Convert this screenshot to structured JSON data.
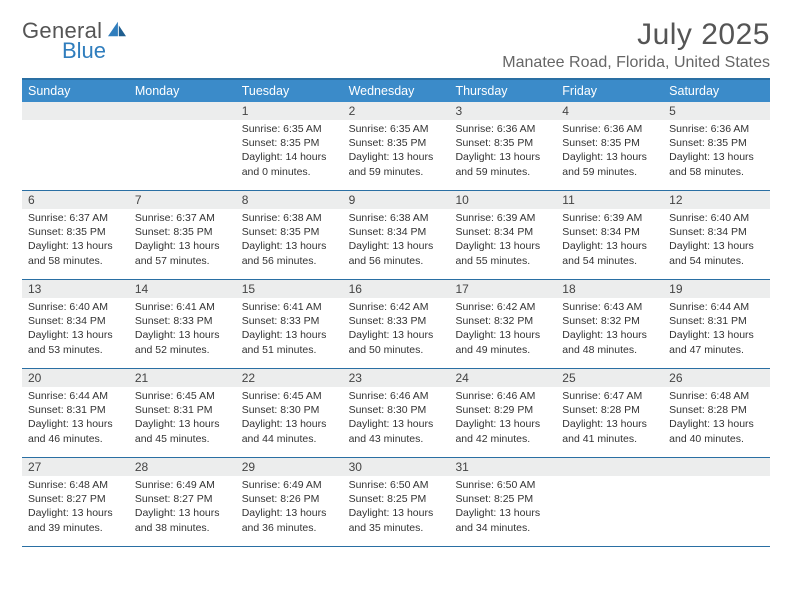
{
  "brand": {
    "text1": "General",
    "text2": "Blue"
  },
  "title": "July 2025",
  "location": "Manatee Road, Florida, United States",
  "colors": {
    "header_bg": "#3b8bc9",
    "rule": "#2a6fa3",
    "daynum_bg": "#eceded",
    "text": "#333333"
  },
  "days_of_week": [
    "Sunday",
    "Monday",
    "Tuesday",
    "Wednesday",
    "Thursday",
    "Friday",
    "Saturday"
  ],
  "weeks": [
    [
      {
        "n": "",
        "sr": "",
        "ss": "",
        "dl": ""
      },
      {
        "n": "",
        "sr": "",
        "ss": "",
        "dl": ""
      },
      {
        "n": "1",
        "sr": "Sunrise: 6:35 AM",
        "ss": "Sunset: 8:35 PM",
        "dl": "Daylight: 14 hours and 0 minutes."
      },
      {
        "n": "2",
        "sr": "Sunrise: 6:35 AM",
        "ss": "Sunset: 8:35 PM",
        "dl": "Daylight: 13 hours and 59 minutes."
      },
      {
        "n": "3",
        "sr": "Sunrise: 6:36 AM",
        "ss": "Sunset: 8:35 PM",
        "dl": "Daylight: 13 hours and 59 minutes."
      },
      {
        "n": "4",
        "sr": "Sunrise: 6:36 AM",
        "ss": "Sunset: 8:35 PM",
        "dl": "Daylight: 13 hours and 59 minutes."
      },
      {
        "n": "5",
        "sr": "Sunrise: 6:36 AM",
        "ss": "Sunset: 8:35 PM",
        "dl": "Daylight: 13 hours and 58 minutes."
      }
    ],
    [
      {
        "n": "6",
        "sr": "Sunrise: 6:37 AM",
        "ss": "Sunset: 8:35 PM",
        "dl": "Daylight: 13 hours and 58 minutes."
      },
      {
        "n": "7",
        "sr": "Sunrise: 6:37 AM",
        "ss": "Sunset: 8:35 PM",
        "dl": "Daylight: 13 hours and 57 minutes."
      },
      {
        "n": "8",
        "sr": "Sunrise: 6:38 AM",
        "ss": "Sunset: 8:35 PM",
        "dl": "Daylight: 13 hours and 56 minutes."
      },
      {
        "n": "9",
        "sr": "Sunrise: 6:38 AM",
        "ss": "Sunset: 8:34 PM",
        "dl": "Daylight: 13 hours and 56 minutes."
      },
      {
        "n": "10",
        "sr": "Sunrise: 6:39 AM",
        "ss": "Sunset: 8:34 PM",
        "dl": "Daylight: 13 hours and 55 minutes."
      },
      {
        "n": "11",
        "sr": "Sunrise: 6:39 AM",
        "ss": "Sunset: 8:34 PM",
        "dl": "Daylight: 13 hours and 54 minutes."
      },
      {
        "n": "12",
        "sr": "Sunrise: 6:40 AM",
        "ss": "Sunset: 8:34 PM",
        "dl": "Daylight: 13 hours and 54 minutes."
      }
    ],
    [
      {
        "n": "13",
        "sr": "Sunrise: 6:40 AM",
        "ss": "Sunset: 8:34 PM",
        "dl": "Daylight: 13 hours and 53 minutes."
      },
      {
        "n": "14",
        "sr": "Sunrise: 6:41 AM",
        "ss": "Sunset: 8:33 PM",
        "dl": "Daylight: 13 hours and 52 minutes."
      },
      {
        "n": "15",
        "sr": "Sunrise: 6:41 AM",
        "ss": "Sunset: 8:33 PM",
        "dl": "Daylight: 13 hours and 51 minutes."
      },
      {
        "n": "16",
        "sr": "Sunrise: 6:42 AM",
        "ss": "Sunset: 8:33 PM",
        "dl": "Daylight: 13 hours and 50 minutes."
      },
      {
        "n": "17",
        "sr": "Sunrise: 6:42 AM",
        "ss": "Sunset: 8:32 PM",
        "dl": "Daylight: 13 hours and 49 minutes."
      },
      {
        "n": "18",
        "sr": "Sunrise: 6:43 AM",
        "ss": "Sunset: 8:32 PM",
        "dl": "Daylight: 13 hours and 48 minutes."
      },
      {
        "n": "19",
        "sr": "Sunrise: 6:44 AM",
        "ss": "Sunset: 8:31 PM",
        "dl": "Daylight: 13 hours and 47 minutes."
      }
    ],
    [
      {
        "n": "20",
        "sr": "Sunrise: 6:44 AM",
        "ss": "Sunset: 8:31 PM",
        "dl": "Daylight: 13 hours and 46 minutes."
      },
      {
        "n": "21",
        "sr": "Sunrise: 6:45 AM",
        "ss": "Sunset: 8:31 PM",
        "dl": "Daylight: 13 hours and 45 minutes."
      },
      {
        "n": "22",
        "sr": "Sunrise: 6:45 AM",
        "ss": "Sunset: 8:30 PM",
        "dl": "Daylight: 13 hours and 44 minutes."
      },
      {
        "n": "23",
        "sr": "Sunrise: 6:46 AM",
        "ss": "Sunset: 8:30 PM",
        "dl": "Daylight: 13 hours and 43 minutes."
      },
      {
        "n": "24",
        "sr": "Sunrise: 6:46 AM",
        "ss": "Sunset: 8:29 PM",
        "dl": "Daylight: 13 hours and 42 minutes."
      },
      {
        "n": "25",
        "sr": "Sunrise: 6:47 AM",
        "ss": "Sunset: 8:28 PM",
        "dl": "Daylight: 13 hours and 41 minutes."
      },
      {
        "n": "26",
        "sr": "Sunrise: 6:48 AM",
        "ss": "Sunset: 8:28 PM",
        "dl": "Daylight: 13 hours and 40 minutes."
      }
    ],
    [
      {
        "n": "27",
        "sr": "Sunrise: 6:48 AM",
        "ss": "Sunset: 8:27 PM",
        "dl": "Daylight: 13 hours and 39 minutes."
      },
      {
        "n": "28",
        "sr": "Sunrise: 6:49 AM",
        "ss": "Sunset: 8:27 PM",
        "dl": "Daylight: 13 hours and 38 minutes."
      },
      {
        "n": "29",
        "sr": "Sunrise: 6:49 AM",
        "ss": "Sunset: 8:26 PM",
        "dl": "Daylight: 13 hours and 36 minutes."
      },
      {
        "n": "30",
        "sr": "Sunrise: 6:50 AM",
        "ss": "Sunset: 8:25 PM",
        "dl": "Daylight: 13 hours and 35 minutes."
      },
      {
        "n": "31",
        "sr": "Sunrise: 6:50 AM",
        "ss": "Sunset: 8:25 PM",
        "dl": "Daylight: 13 hours and 34 minutes."
      },
      {
        "n": "",
        "sr": "",
        "ss": "",
        "dl": ""
      },
      {
        "n": "",
        "sr": "",
        "ss": "",
        "dl": ""
      }
    ]
  ]
}
